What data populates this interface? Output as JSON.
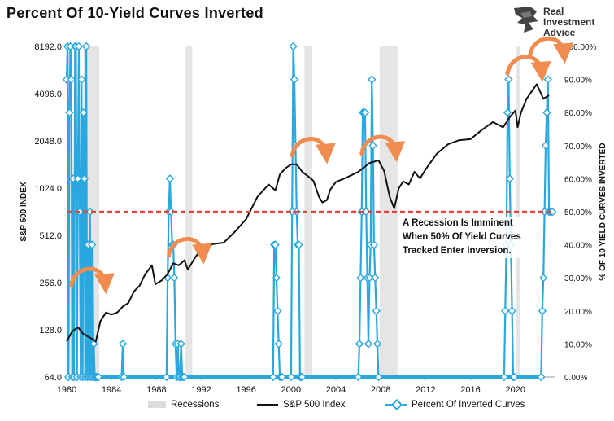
{
  "title": "Percent Of 10-Yield Curves Inverted",
  "brand": {
    "name": "Real Investment Advice",
    "line1": "Real",
    "line2": "Investment",
    "line3": "Advice"
  },
  "annotation": {
    "line1": "A Recession Is Imminent",
    "line2": "When 50% Of Yield Curves",
    "line3": "Tracked Enter Inversion."
  },
  "colors": {
    "sp500": "#111111",
    "pct": "#29a8e0",
    "recession": "#e5e5e5",
    "threshold": "#e2453a",
    "arrow": "#f08c4f"
  },
  "chart_data": {
    "type": "line",
    "title": "Percent Of 10-Yield Curves Inverted",
    "xlim": [
      1980,
      2023.5
    ],
    "x_ticks": [
      "1980",
      "1984",
      "1988",
      "1992",
      "1996",
      "2000",
      "2004",
      "2008",
      "2012",
      "2016",
      "2020"
    ],
    "y_left": {
      "label": "S&P 500 INDEX",
      "scale": "log2",
      "ticks": [
        "64.0",
        "128.0",
        "256.0",
        "512.0",
        "1024.0",
        "2048.0",
        "4096.0",
        "8192.0"
      ]
    },
    "y_right": {
      "label": "% OF 10 YIELD CURVES INVERTED",
      "range": [
        0,
        100
      ],
      "ticks": [
        "0.00%",
        "10.00%",
        "20.00%",
        "30.00%",
        "40.00%",
        "50.00%",
        "60.00%",
        "70.00%",
        "80.00%",
        "90.00%",
        "100.00%"
      ]
    },
    "threshold": 50,
    "recessions": [
      [
        1980.0,
        1980.5
      ],
      [
        1981.5,
        1982.9
      ],
      [
        1990.6,
        1991.2
      ],
      [
        2001.2,
        2001.9
      ],
      [
        2007.9,
        2009.5
      ],
      [
        2020.1,
        2020.4
      ]
    ],
    "legend": [
      "Recessions",
      "S&P 500 Index",
      "Percent Of Inverted Curves"
    ],
    "series": [
      {
        "name": "S&P 500 Index",
        "axis": "left",
        "x": [
          1980,
          1980.5,
          1981,
          1981.5,
          1982,
          1982.6,
          1983,
          1983.5,
          1984,
          1984.5,
          1985,
          1985.5,
          1986,
          1986.5,
          1987,
          1987.6,
          1987.9,
          1988.5,
          1989,
          1989.5,
          1990,
          1990.5,
          1990.8,
          1991.5,
          1992,
          1993,
          1994,
          1995,
          1996,
          1997,
          1998,
          1998.6,
          1999,
          1999.5,
          2000,
          2000.5,
          2001,
          2001.5,
          2002,
          2002.5,
          2002.8,
          2003.2,
          2003.5,
          2004,
          2005,
          2006,
          2007,
          2007.8,
          2008.3,
          2008.8,
          2009.2,
          2009.6,
          2010,
          2010.5,
          2011,
          2011.5,
          2012,
          2013,
          2014,
          2015,
          2016,
          2017,
          2018,
          2018.9,
          2019.5,
          2020,
          2020.2,
          2020.5,
          2021,
          2021.9,
          2022.5,
          2023
        ],
        "y": [
          108,
          125,
          133,
          120,
          115,
          108,
          145,
          165,
          160,
          165,
          180,
          190,
          225,
          245,
          290,
          330,
          250,
          265,
          290,
          340,
          330,
          355,
          310,
          375,
          415,
          450,
          460,
          540,
          650,
          900,
          1080,
          990,
          1250,
          1370,
          1450,
          1450,
          1300,
          1220,
          1140,
          900,
          830,
          860,
          1000,
          1120,
          1200,
          1300,
          1480,
          1540,
          1320,
          900,
          760,
          1020,
          1130,
          1080,
          1300,
          1180,
          1350,
          1700,
          1950,
          2070,
          2100,
          2400,
          2700,
          2500,
          2900,
          3200,
          2500,
          3100,
          3800,
          4700,
          3800,
          4000
        ]
      },
      {
        "name": "Percent Of Inverted Curves",
        "axis": "right",
        "x": [
          1980.0,
          1980.08,
          1980.16,
          1980.25,
          1980.33,
          1980.42,
          1980.5,
          1980.58,
          1980.66,
          1980.75,
          1980.83,
          1980.92,
          1981.0,
          1981.08,
          1981.16,
          1981.25,
          1981.33,
          1981.42,
          1981.5,
          1981.58,
          1981.66,
          1981.75,
          1981.83,
          1981.92,
          1982.0,
          1982.08,
          1982.16,
          1982.25,
          1982.33,
          1982.42,
          1982.5,
          1982.58,
          1982.66,
          1982.75,
          1982.83,
          1984.9,
          1985.0,
          1985.1,
          1988.9,
          1989.0,
          1989.1,
          1989.2,
          1989.3,
          1989.4,
          1989.5,
          1989.6,
          1989.7,
          1989.8,
          1989.9,
          1990.0,
          1990.1,
          1990.2,
          1990.3,
          1990.4,
          1990.5,
          1998.4,
          1998.5,
          1998.6,
          1998.7,
          1998.8,
          1998.9,
          1999.0,
          1999.1,
          1999.2,
          2000.0,
          2000.1,
          2000.2,
          2000.3,
          2000.4,
          2000.5,
          2000.6,
          2000.7,
          2000.8,
          2000.9,
          2001.0,
          2006.0,
          2006.1,
          2006.2,
          2006.3,
          2006.4,
          2006.5,
          2006.6,
          2006.7,
          2006.8,
          2006.9,
          2007.0,
          2007.1,
          2007.2,
          2007.3,
          2007.4,
          2007.5,
          2007.6,
          2007.7,
          2007.8,
          2019.0,
          2019.1,
          2019.2,
          2019.3,
          2019.4,
          2019.5,
          2019.6,
          2019.7,
          2019.8,
          2019.9,
          2022.3,
          2022.4,
          2022.5,
          2022.6,
          2022.7,
          2022.8,
          2022.9,
          2023.0,
          2023.1,
          2023.2,
          2023.3
        ],
        "y": [
          90,
          100,
          0,
          80,
          100,
          90,
          0,
          60,
          0,
          100,
          100,
          0,
          60,
          100,
          50,
          0,
          90,
          0,
          80,
          60,
          0,
          100,
          0,
          40,
          0,
          50,
          0,
          40,
          0,
          10,
          0,
          0,
          0,
          0,
          0,
          0,
          10,
          0,
          0,
          30,
          50,
          60,
          50,
          40,
          40,
          30,
          10,
          0,
          10,
          0,
          0,
          10,
          0,
          0,
          0,
          0,
          40,
          40,
          30,
          20,
          10,
          0,
          0,
          0,
          0,
          50,
          100,
          90,
          70,
          50,
          40,
          40,
          0,
          0,
          0,
          0,
          10,
          30,
          50,
          80,
          80,
          80,
          50,
          30,
          10,
          30,
          40,
          90,
          70,
          40,
          30,
          20,
          10,
          0,
          0,
          20,
          40,
          80,
          90,
          60,
          40,
          20,
          0,
          0,
          0,
          20,
          30,
          50,
          70,
          80,
          90,
          50,
          50,
          50,
          50
        ]
      }
    ],
    "annotations": [
      {
        "text": "A Recession Is Imminent When 50% Of Yield Curves Tracked Enter Inversion."
      }
    ]
  }
}
